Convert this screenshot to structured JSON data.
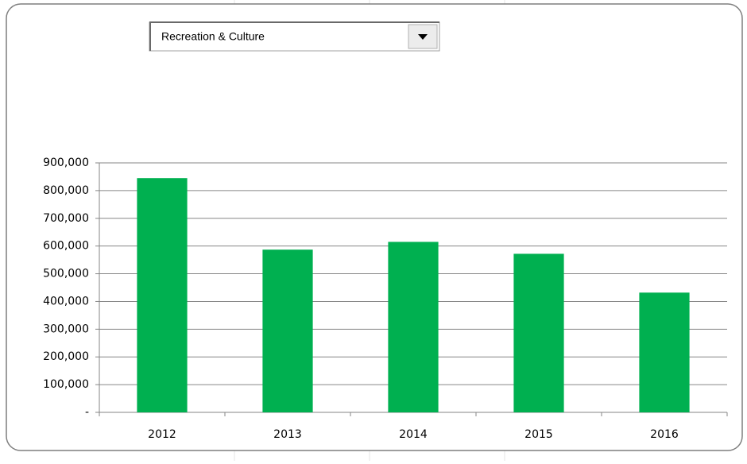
{
  "dropdown": {
    "selected": "Recreation & Culture"
  },
  "chart_data": {
    "type": "bar",
    "categories": [
      "2012",
      "2013",
      "2014",
      "2015",
      "2016"
    ],
    "values": [
      845000,
      587000,
      615000,
      572000,
      432000
    ],
    "color": "#00b050",
    "ylim": [
      0,
      900000
    ],
    "yticks": [
      {
        "value": 0,
        "label": "-"
      },
      {
        "value": 100000,
        "label": "100,000"
      },
      {
        "value": 200000,
        "label": "200,000"
      },
      {
        "value": 300000,
        "label": "300,000"
      },
      {
        "value": 400000,
        "label": "400,000"
      },
      {
        "value": 500000,
        "label": "500,000"
      },
      {
        "value": 600000,
        "label": "600,000"
      },
      {
        "value": 700000,
        "label": "700,000"
      },
      {
        "value": 800000,
        "label": "800,000"
      },
      {
        "value": 900000,
        "label": "900,000"
      }
    ],
    "grid": true
  }
}
